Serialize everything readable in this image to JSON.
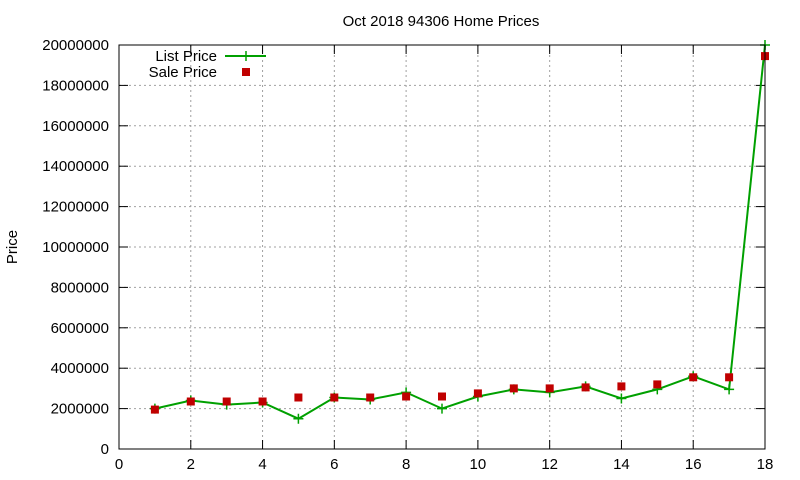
{
  "chart_data": {
    "type": "line",
    "title": "Oct 2018 94306 Home Prices",
    "xlabel": "",
    "ylabel": "Price",
    "xlim": [
      0,
      18
    ],
    "ylim": [
      0,
      20000000
    ],
    "x_ticks": [
      0,
      2,
      4,
      6,
      8,
      10,
      12,
      14,
      16,
      18
    ],
    "y_ticks": [
      0,
      2000000,
      4000000,
      6000000,
      8000000,
      10000000,
      12000000,
      14000000,
      16000000,
      18000000,
      20000000
    ],
    "grid": true,
    "legend_position": "top-left",
    "series": [
      {
        "name": "List Price",
        "style": "line-with-plus-markers",
        "color": "#00a000",
        "x": [
          1,
          2,
          3,
          4,
          5,
          6,
          7,
          8,
          9,
          10,
          11,
          12,
          13,
          14,
          15,
          16,
          17,
          18
        ],
        "values": [
          2000000,
          2400000,
          2200000,
          2300000,
          1500000,
          2550000,
          2450000,
          2800000,
          2000000,
          2600000,
          2950000,
          2800000,
          3100000,
          2500000,
          2950000,
          3600000,
          2950000,
          20000000
        ]
      },
      {
        "name": "Sale Price",
        "style": "square-markers",
        "color": "#c00000",
        "x": [
          1,
          2,
          3,
          4,
          5,
          6,
          7,
          8,
          9,
          10,
          11,
          12,
          13,
          14,
          15,
          16,
          17,
          18
        ],
        "values": [
          1950000,
          2350000,
          2350000,
          2350000,
          2550000,
          2550000,
          2550000,
          2600000,
          2600000,
          2750000,
          3000000,
          3000000,
          3050000,
          3100000,
          3200000,
          3550000,
          3550000,
          19450000
        ]
      }
    ]
  }
}
